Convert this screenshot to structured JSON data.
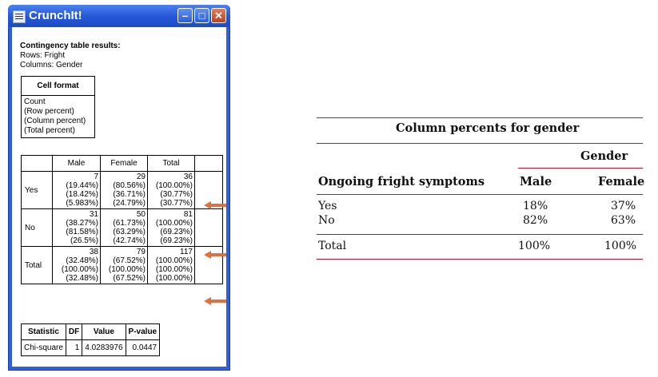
{
  "window": {
    "title": "CrunchIt!",
    "controls": {
      "minimize_icon": "minimize-icon",
      "maximize_icon": "maximize-icon",
      "close_icon": "close-icon"
    }
  },
  "results": {
    "heading": "Contingency table results:",
    "rows_line": "Rows: Fright",
    "columns_line": "Columns: Gender"
  },
  "cell_format": {
    "header": "Cell format",
    "lines": [
      "Count",
      "(Row percent)",
      "(Column percent)",
      "(Total percent)"
    ]
  },
  "contingency": {
    "columns": [
      "Male",
      "Female",
      "Total"
    ],
    "rows": [
      {
        "label": "Yes",
        "cells": [
          [
            "7",
            "(19.44%)",
            "(18.42%)",
            "(5.983%)"
          ],
          [
            "29",
            "(80.56%)",
            "(36.71%)",
            "(24.79%)"
          ],
          [
            "36",
            "(100.00%)",
            "(30.77%)",
            "(30.77%)"
          ]
        ]
      },
      {
        "label": "No",
        "cells": [
          [
            "31",
            "(38.27%)",
            "(81.58%)",
            "(26.5%)"
          ],
          [
            "50",
            "(61.73%)",
            "(63.29%)",
            "(42.74%)"
          ],
          [
            "81",
            "(100.00%)",
            "(69.23%)",
            "(69.23%)"
          ]
        ]
      },
      {
        "label": "Total",
        "cells": [
          [
            "38",
            "(32.48%)",
            "(100.00%)",
            "(32.48%)"
          ],
          [
            "79",
            "(67.52%)",
            "(100.00%)",
            "(67.52%)"
          ],
          [
            "117",
            "(100.00%)",
            "(100.00%)",
            "(100.00%)"
          ]
        ]
      }
    ],
    "arrow_color": "#e07040"
  },
  "statistics": {
    "headers": [
      "Statistic",
      "DF",
      "Value",
      "P-value"
    ],
    "row": [
      "Chi-square",
      "1",
      "4.0283976",
      "0.0447"
    ]
  },
  "summary_table": {
    "title": "Column percents for gender",
    "group_header": "Gender",
    "row_header": "Ongoing fright symptoms",
    "columns": [
      "Male",
      "Female"
    ],
    "rows": [
      {
        "label": "Yes",
        "values": [
          "18%",
          "37%"
        ]
      },
      {
        "label": "No",
        "values": [
          "82%",
          "63%"
        ]
      }
    ],
    "total": {
      "label": "Total",
      "values": [
        "100%",
        "100%"
      ]
    },
    "rule_color": "#c8102e"
  }
}
